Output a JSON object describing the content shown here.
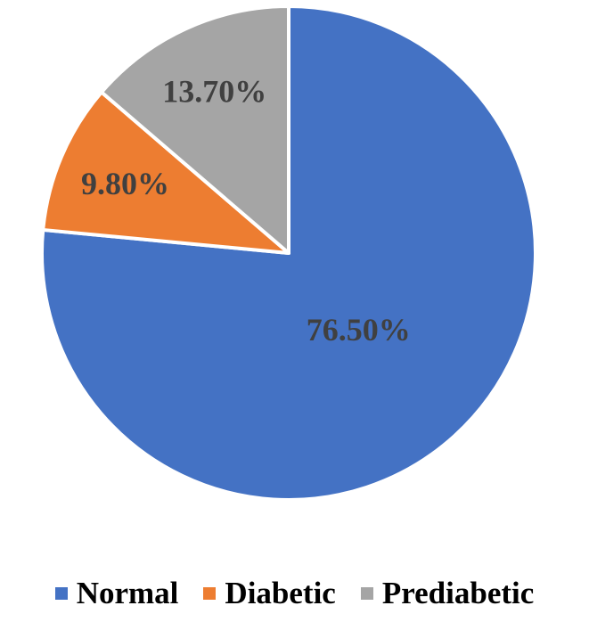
{
  "chart_data": {
    "type": "pie",
    "categories": [
      "Normal",
      "Diabetic",
      "Prediabetic"
    ],
    "values": [
      76.5,
      9.8,
      13.7
    ],
    "data_labels": [
      "76.50%",
      "9.80%",
      "13.70%"
    ],
    "colors": [
      "#4472C4",
      "#ED7D31",
      "#A5A5A5"
    ],
    "title": "",
    "legend": "bottom",
    "start_angle": "12 o'clock, clockwise"
  },
  "legend": {
    "items": [
      {
        "label": "Normal",
        "color": "#4472C4"
      },
      {
        "label": "Diabetic",
        "color": "#ED7D31"
      },
      {
        "label": "Prediabetic",
        "color": "#A5A5A5"
      }
    ]
  }
}
